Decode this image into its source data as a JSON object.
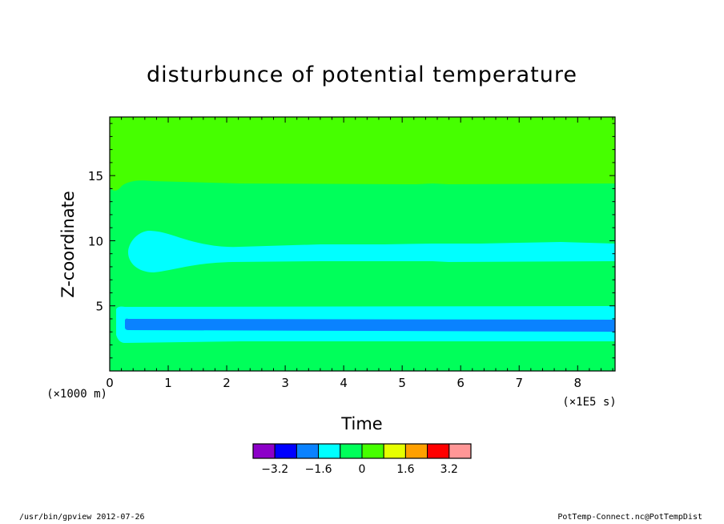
{
  "chart_data": {
    "type": "heatmap",
    "title": "disturbunce of potential temperature",
    "xlabel": "Time",
    "ylabel": "Z-coordinate",
    "x_unit": "(×1E5 s)",
    "y_unit": "(×1000 m)",
    "xlim": [
      0,
      8.64
    ],
    "ylim": [
      0,
      19.5
    ],
    "x_ticks": [
      0,
      1,
      2,
      3,
      4,
      5,
      6,
      7,
      8
    ],
    "y_ticks": [
      5,
      10,
      15
    ],
    "colorbar": {
      "colors": [
        "#8c00c8",
        "#0000ff",
        "#0a82ff",
        "#00ffff",
        "#00ff5a",
        "#46ff00",
        "#e6ff00",
        "#ffa000",
        "#ff0000",
        "#ff9696"
      ],
      "tick_labels": [
        "−3.2",
        "−1.6",
        "0",
        "1.6",
        "3.2"
      ]
    },
    "bands": [
      {
        "level": "0 to 0.8",
        "color": "#46ff00",
        "z_range": [
          14.6,
          19.5
        ]
      },
      {
        "level": "-0.8 to 0",
        "color": "#00ff5a",
        "z_range": [
          10.0,
          14.6
        ]
      },
      {
        "level": "-1.6 to -0.8",
        "color": "#00ffff",
        "z_range": [
          8.6,
          10.0
        ]
      },
      {
        "level": "-0.8 to 0",
        "color": "#00ff5a",
        "z_range": [
          5.0,
          8.6
        ]
      },
      {
        "level": "-1.6 to -0.8",
        "color": "#00ffff",
        "z_range": [
          2.2,
          5.0
        ]
      },
      {
        "level": "-2.4 to -1.6",
        "color": "#0a82ff",
        "z_range": [
          3.2,
          4.0
        ]
      },
      {
        "level": "-0.8 to 0",
        "color": "#00ff5a",
        "z_range": [
          0,
          2.2
        ]
      }
    ]
  },
  "footer": {
    "left": "/usr/bin/gpview   2012-07-26",
    "right": "PotTemp-Connect.nc@PotTempDist"
  }
}
